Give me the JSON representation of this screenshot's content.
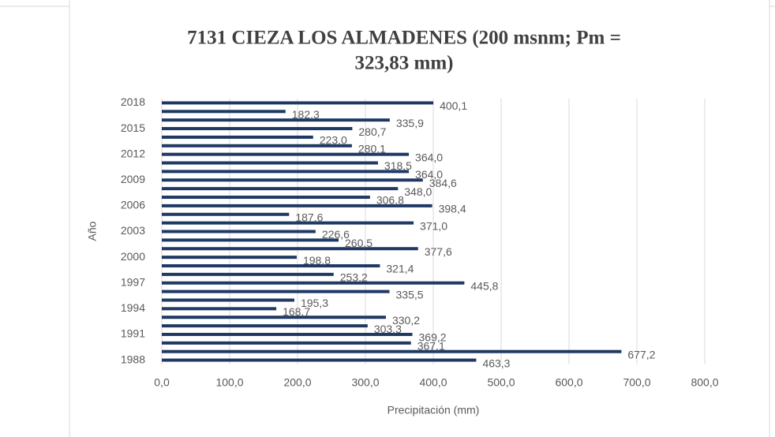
{
  "chart_data": {
    "type": "hbar",
    "title": [
      "7131 CIEZA LOS ALMADENES (200 msnm; Pm =",
      "323,83 mm)"
    ],
    "x_label": "Precipitación (mm)",
    "y_label": "Año",
    "categories": [
      "1988",
      null,
      null,
      "1991",
      null,
      null,
      "1994",
      null,
      null,
      "1997",
      null,
      null,
      "2000",
      null,
      null,
      "2003",
      null,
      null,
      "2006",
      null,
      null,
      "2009",
      null,
      null,
      "2012",
      null,
      null,
      "2015",
      null,
      null,
      "2018"
    ],
    "values": [
      463.3,
      677.2,
      367.1,
      369.2,
      303.3,
      330.2,
      168.7,
      195.3,
      335.5,
      445.8,
      253.2,
      321.4,
      198.8,
      377.6,
      260.5,
      226.6,
      371.0,
      187.6,
      398.4,
      306.8,
      348.0,
      384.6,
      364.0,
      318.5,
      364.0,
      280.1,
      223.0,
      280.7,
      335.9,
      182.3,
      400.1
    ],
    "value_labels": [
      "463,3",
      "677,2",
      "367,1",
      "369,2",
      "303,3",
      "330,2",
      "168,7",
      "195,3",
      "335,5",
      "445,8",
      "253,2",
      "321,4",
      "198,8",
      "377,6",
      "260,5",
      "226,6",
      "371,0",
      "187,6",
      "398,4",
      "306,8",
      "348,0",
      "384,6",
      "364,0",
      "318,5",
      "364,0",
      "280,1",
      "223,0",
      "280,7",
      "335,9",
      "182,3",
      "400,1"
    ],
    "color": "#1f3864",
    "xlim": [
      0,
      800
    ],
    "xticks": [
      {
        "value": 0,
        "label": "0,0"
      },
      {
        "value": 100,
        "label": "100,0"
      },
      {
        "value": 200,
        "label": "200,0"
      },
      {
        "value": 300,
        "label": "300,0"
      },
      {
        "value": 400,
        "label": "400,0"
      },
      {
        "value": 500,
        "label": "500,0"
      },
      {
        "value": 600,
        "label": "600,0"
      },
      {
        "value": 700,
        "label": "700,0"
      },
      {
        "value": 800,
        "label": "800,0"
      }
    ],
    "grid": true
  }
}
